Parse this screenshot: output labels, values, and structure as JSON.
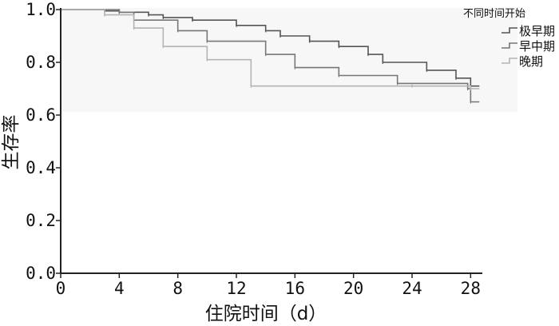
{
  "chart_data": {
    "type": "line",
    "step": true,
    "xlabel": "住院时间（d）",
    "ylabel": "生存率",
    "xlim": [
      0,
      28.8
    ],
    "ylim": [
      0,
      1.0
    ],
    "x_ticks": [
      0,
      4,
      8,
      12,
      16,
      20,
      24,
      28
    ],
    "y_ticks": [
      0.0,
      0.2,
      0.4,
      0.6,
      0.8,
      1.0
    ],
    "y_tick_labels": [
      "0.0",
      "0.2",
      "0.4",
      "0.6",
      "0.8",
      "1.0"
    ],
    "legend": {
      "title": "不同时间开始",
      "placement": "top-right"
    },
    "series": [
      {
        "name": "极早期",
        "color": "#555555",
        "points": [
          [
            0,
            1.0
          ],
          [
            3,
            0.995
          ],
          [
            4,
            0.99
          ],
          [
            6,
            0.98
          ],
          [
            7,
            0.97
          ],
          [
            9,
            0.96
          ],
          [
            12,
            0.94
          ],
          [
            14,
            0.92
          ],
          [
            15,
            0.9
          ],
          [
            17,
            0.88
          ],
          [
            19,
            0.86
          ],
          [
            21,
            0.83
          ],
          [
            22,
            0.8
          ],
          [
            25,
            0.77
          ],
          [
            27,
            0.74
          ],
          [
            28,
            0.71
          ],
          [
            28.6,
            0.71
          ]
        ]
      },
      {
        "name": "早中期",
        "color": "#777777",
        "points": [
          [
            0,
            1.0
          ],
          [
            4,
            0.99
          ],
          [
            5,
            0.96
          ],
          [
            8,
            0.92
          ],
          [
            10,
            0.88
          ],
          [
            14,
            0.83
          ],
          [
            16,
            0.78
          ],
          [
            19,
            0.75
          ],
          [
            23,
            0.72
          ],
          [
            27.8,
            0.7
          ],
          [
            28,
            0.65
          ],
          [
            28.6,
            0.65
          ]
        ]
      },
      {
        "name": "晚期",
        "color": "#b4b4b4",
        "points": [
          [
            0,
            1.0
          ],
          [
            3,
            0.98
          ],
          [
            5,
            0.93
          ],
          [
            7,
            0.86
          ],
          [
            10,
            0.81
          ],
          [
            13,
            0.71
          ],
          [
            24,
            0.71
          ],
          [
            28,
            0.7
          ],
          [
            28.6,
            0.7
          ]
        ]
      }
    ]
  }
}
